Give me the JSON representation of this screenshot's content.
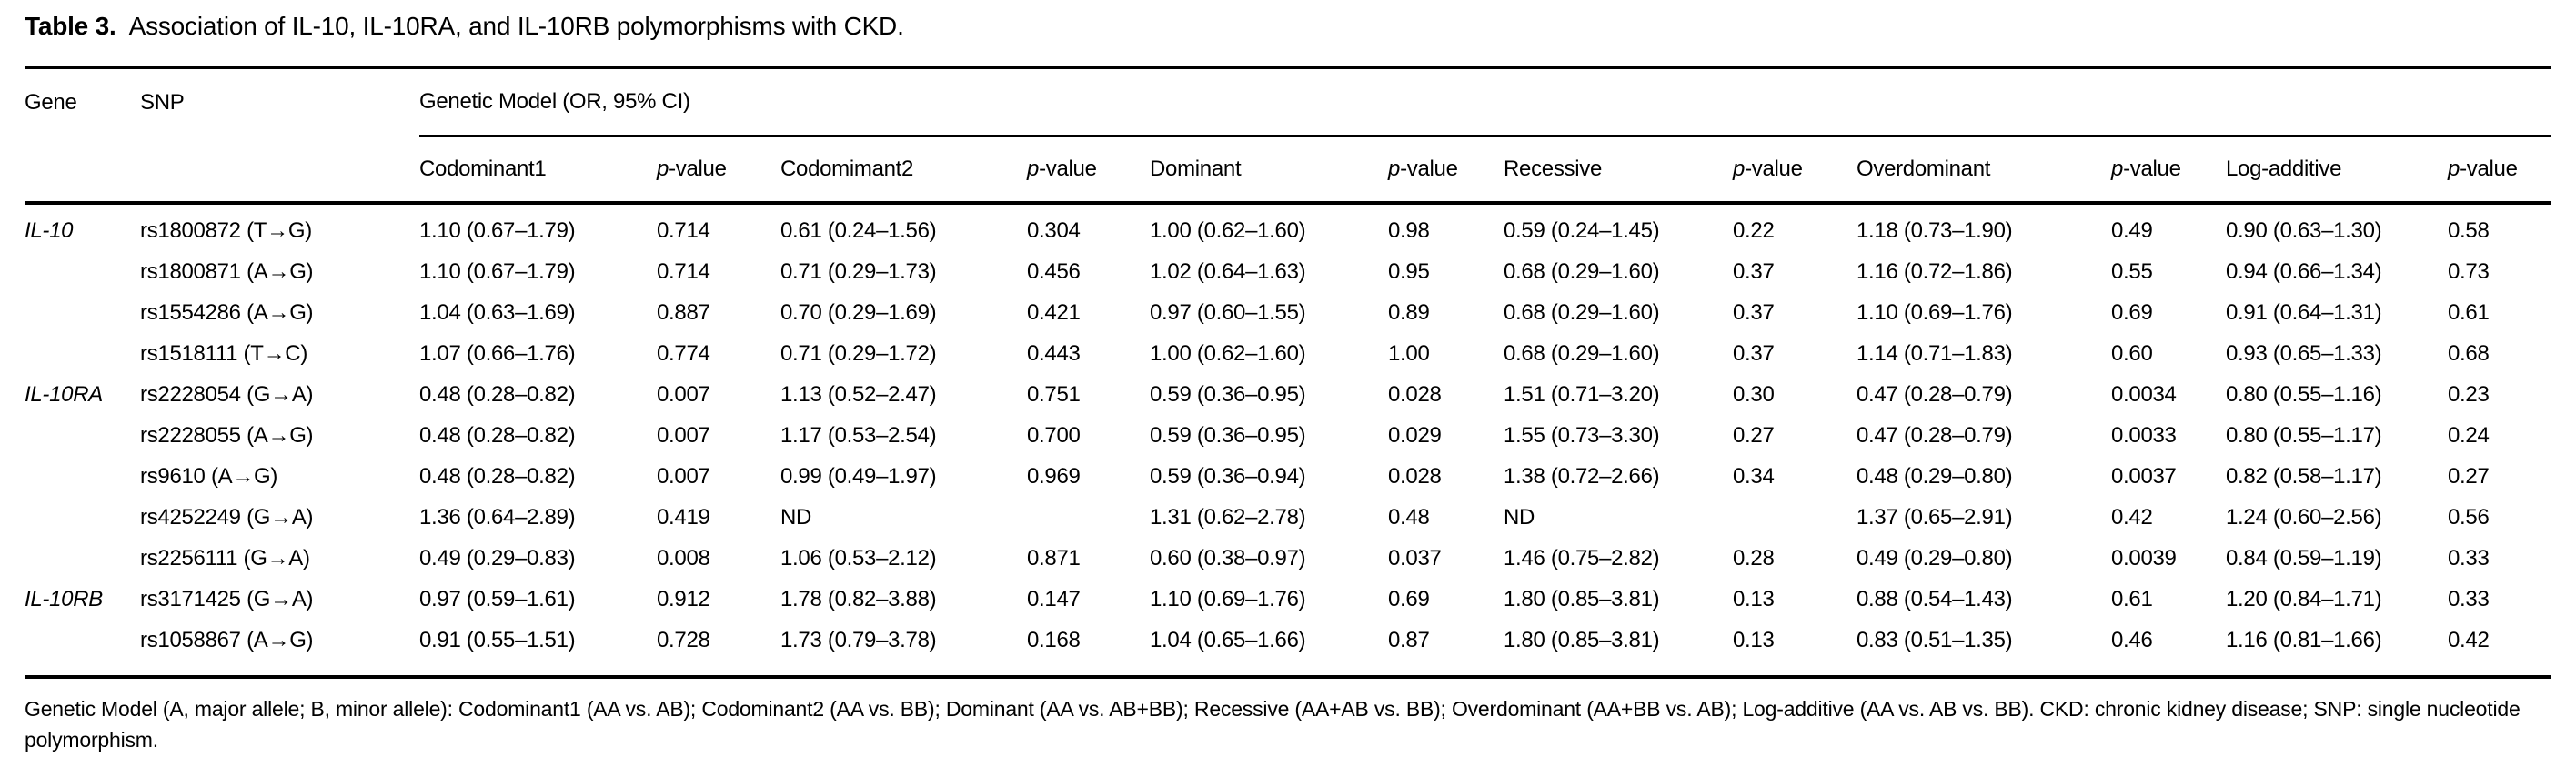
{
  "title": {
    "label": "Table 3.",
    "text": "Association of IL-10, IL-10RA, and IL-10RB polymorphisms with CKD."
  },
  "table": {
    "col_headers": {
      "gene": "Gene",
      "snp": "SNP",
      "span_header": "Genetic Model (OR, 95% CI)",
      "sub_headers": [
        "Codominant1",
        "p-value",
        "Codomimant2",
        "p-value",
        "Dominant",
        "p-value",
        "Recessive",
        "p-value",
        "Overdominant",
        "p-value",
        "Log-additive",
        "p-value"
      ]
    },
    "rows": [
      {
        "gene": "IL-10",
        "snp": "rs1800872 (T→G)",
        "values": [
          "1.10 (0.67–1.79)",
          "0.714",
          "0.61 (0.24–1.56)",
          "0.304",
          "1.00 (0.62–1.60)",
          "0.98",
          "0.59 (0.24–1.45)",
          "0.22",
          "1.18 (0.73–1.90)",
          "0.49",
          "0.90 (0.63–1.30)",
          "0.58"
        ]
      },
      {
        "gene": "",
        "snp": "rs1800871 (A→G)",
        "values": [
          "1.10 (0.67–1.79)",
          "0.714",
          "0.71 (0.29–1.73)",
          "0.456",
          "1.02 (0.64–1.63)",
          "0.95",
          "0.68 (0.29–1.60)",
          "0.37",
          "1.16 (0.72–1.86)",
          "0.55",
          "0.94 (0.66–1.34)",
          "0.73"
        ]
      },
      {
        "gene": "",
        "snp": "rs1554286 (A→G)",
        "values": [
          "1.04 (0.63–1.69)",
          "0.887",
          "0.70 (0.29–1.69)",
          "0.421",
          "0.97 (0.60–1.55)",
          "0.89",
          "0.68 (0.29–1.60)",
          "0.37",
          "1.10 (0.69–1.76)",
          "0.69",
          "0.91 (0.64–1.31)",
          "0.61"
        ]
      },
      {
        "gene": "",
        "snp": "rs1518111 (T→C)",
        "values": [
          "1.07 (0.66–1.76)",
          "0.774",
          "0.71 (0.29–1.72)",
          "0.443",
          "1.00 (0.62–1.60)",
          "1.00",
          "0.68 (0.29–1.60)",
          "0.37",
          "1.14 (0.71–1.83)",
          "0.60",
          "0.93 (0.65–1.33)",
          "0.68"
        ]
      },
      {
        "gene": "IL-10RA",
        "snp": "rs2228054 (G→A)",
        "values": [
          "0.48 (0.28–0.82)",
          "0.007",
          "1.13 (0.52–2.47)",
          "0.751",
          "0.59 (0.36–0.95)",
          "0.028",
          "1.51 (0.71–3.20)",
          "0.30",
          "0.47 (0.28–0.79)",
          "0.0034",
          "0.80 (0.55–1.16)",
          "0.23"
        ]
      },
      {
        "gene": "",
        "snp": "rs2228055 (A→G)",
        "values": [
          "0.48 (0.28–0.82)",
          "0.007",
          "1.17 (0.53–2.54)",
          "0.700",
          "0.59 (0.36–0.95)",
          "0.029",
          "1.55 (0.73–3.30)",
          "0.27",
          "0.47 (0.28–0.79)",
          "0.0033",
          "0.80 (0.55–1.17)",
          "0.24"
        ]
      },
      {
        "gene": "",
        "snp": "rs9610 (A→G)",
        "values": [
          "0.48 (0.28–0.82)",
          "0.007",
          "0.99 (0.49–1.97)",
          "0.969",
          "0.59 (0.36–0.94)",
          "0.028",
          "1.38 (0.72–2.66)",
          "0.34",
          "0.48 (0.29–0.80)",
          "0.0037",
          "0.82 (0.58–1.17)",
          "0.27"
        ]
      },
      {
        "gene": "",
        "snp": "rs4252249 (G→A)",
        "values": [
          "1.36 (0.64–2.89)",
          "0.419",
          "ND",
          "",
          "1.31 (0.62–2.78)",
          "0.48",
          "ND",
          "",
          "1.37 (0.65–2.91)",
          "0.42",
          "1.24 (0.60–2.56)",
          "0.56"
        ]
      },
      {
        "gene": "",
        "snp": "rs2256111 (G→A)",
        "values": [
          "0.49 (0.29–0.83)",
          "0.008",
          "1.06 (0.53–2.12)",
          "0.871",
          "0.60 (0.38–0.97)",
          "0.037",
          "1.46 (0.75–2.82)",
          "0.28",
          "0.49 (0.29–0.80)",
          "0.0039",
          "0.84 (0.59–1.19)",
          "0.33"
        ]
      },
      {
        "gene": "IL-10RB",
        "snp": "rs3171425 (G→A)",
        "values": [
          "0.97 (0.59–1.61)",
          "0.912",
          "1.78 (0.82–3.88)",
          "0.147",
          "1.10 (0.69–1.76)",
          "0.69",
          "1.80 (0.85–3.81)",
          "0.13",
          "0.88 (0.54–1.43)",
          "0.61",
          "1.20 (0.84–1.71)",
          "0.33"
        ]
      },
      {
        "gene": "",
        "snp": "rs1058867 (A→G)",
        "values": [
          "0.91 (0.55–1.51)",
          "0.728",
          "1.73 (0.79–3.78)",
          "0.168",
          "1.04 (0.65–1.66)",
          "0.87",
          "1.80 (0.85–3.81)",
          "0.13",
          "0.83 (0.51–1.35)",
          "0.46",
          "1.16 (0.81–1.66)",
          "0.42"
        ]
      }
    ]
  },
  "footnote": "Genetic Model (A, major allele; B, minor allele): Codominant1 (AA vs. AB); Codominant2 (AA vs. BB); Dominant (AA vs. AB+BB); Recessive (AA+AB vs. BB); Overdominant (AA+BB vs. AB); Log-additive (AA vs. AB vs. BB). CKD: chronic kidney disease; SNP: single nucleotide polymorphism."
}
